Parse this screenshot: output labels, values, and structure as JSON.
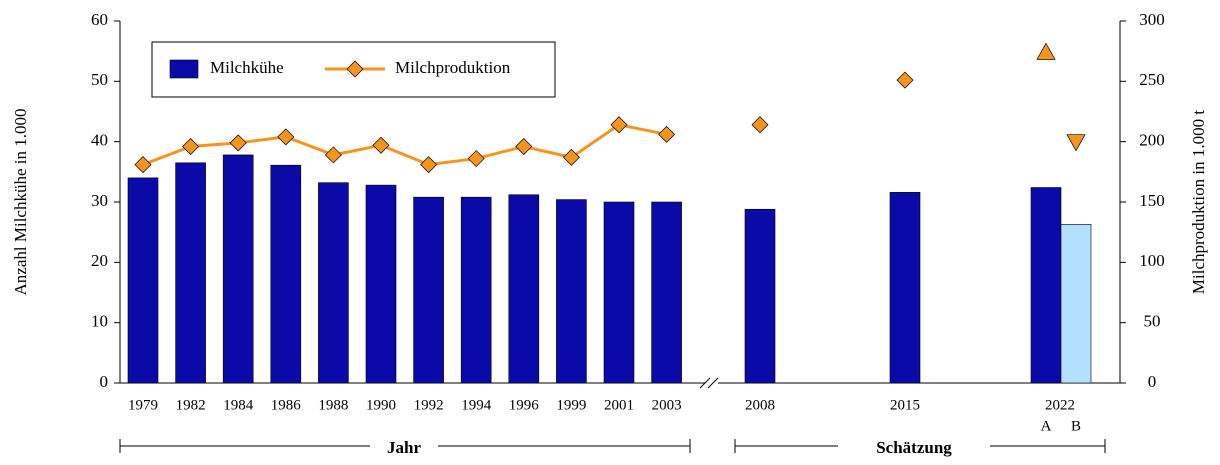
{
  "chart_data": {
    "type": "bar_line",
    "y_label": "Anzahl Milchkühe in 1.000",
    "y2_label": "Milchproduktion in 1.000 t",
    "categories": [
      "1979",
      "1982",
      "1984",
      "1986",
      "1988",
      "1990",
      "1992",
      "1994",
      "1996",
      "1999",
      "2001",
      "2003",
      "2008",
      "2015",
      "A",
      "B"
    ],
    "group_label": "2022",
    "x_groups": [
      "Jahr",
      "Schätzung"
    ],
    "ylim": [
      0,
      60
    ],
    "yticks": [
      0,
      10,
      20,
      30,
      40,
      50,
      60
    ],
    "y2lim": [
      0,
      300
    ],
    "y2ticks": [
      0,
      50,
      100,
      150,
      200,
      250,
      300
    ],
    "series": [
      {
        "name": "Milchkühe",
        "color": "#0a0aa8",
        "colors": [
          "#0a0aa8",
          "#0a0aa8",
          "#0a0aa8",
          "#0a0aa8",
          "#0a0aa8",
          "#0a0aa8",
          "#0a0aa8",
          "#0a0aa8",
          "#0a0aa8",
          "#0a0aa8",
          "#0a0aa8",
          "#0a0aa8",
          "#0a0aa8",
          "#0a0aa8",
          "#0a0aa8",
          "#b3e0ff"
        ],
        "values": [
          34,
          36.5,
          37.8,
          36.1,
          33.2,
          32.8,
          30.8,
          30.8,
          31.2,
          30.4,
          30,
          30,
          28.8,
          31.6,
          32.4,
          26.3
        ]
      },
      {
        "name": "Milchproduktion",
        "color": "#f7941d",
        "axis": "y2",
        "values": [
          181,
          196,
          199,
          204,
          189,
          197,
          181,
          186,
          196,
          187,
          214,
          206,
          null,
          null,
          null,
          null
        ],
        "estimate_values": [
          null,
          null,
          null,
          null,
          null,
          null,
          null,
          null,
          null,
          null,
          null,
          null,
          214,
          251,
          274,
          200
        ],
        "estimate_markers": [
          null,
          null,
          null,
          null,
          null,
          null,
          null,
          null,
          null,
          null,
          null,
          null,
          "diamond",
          "diamond",
          "triangle-up",
          "triangle-down"
        ]
      }
    ]
  }
}
